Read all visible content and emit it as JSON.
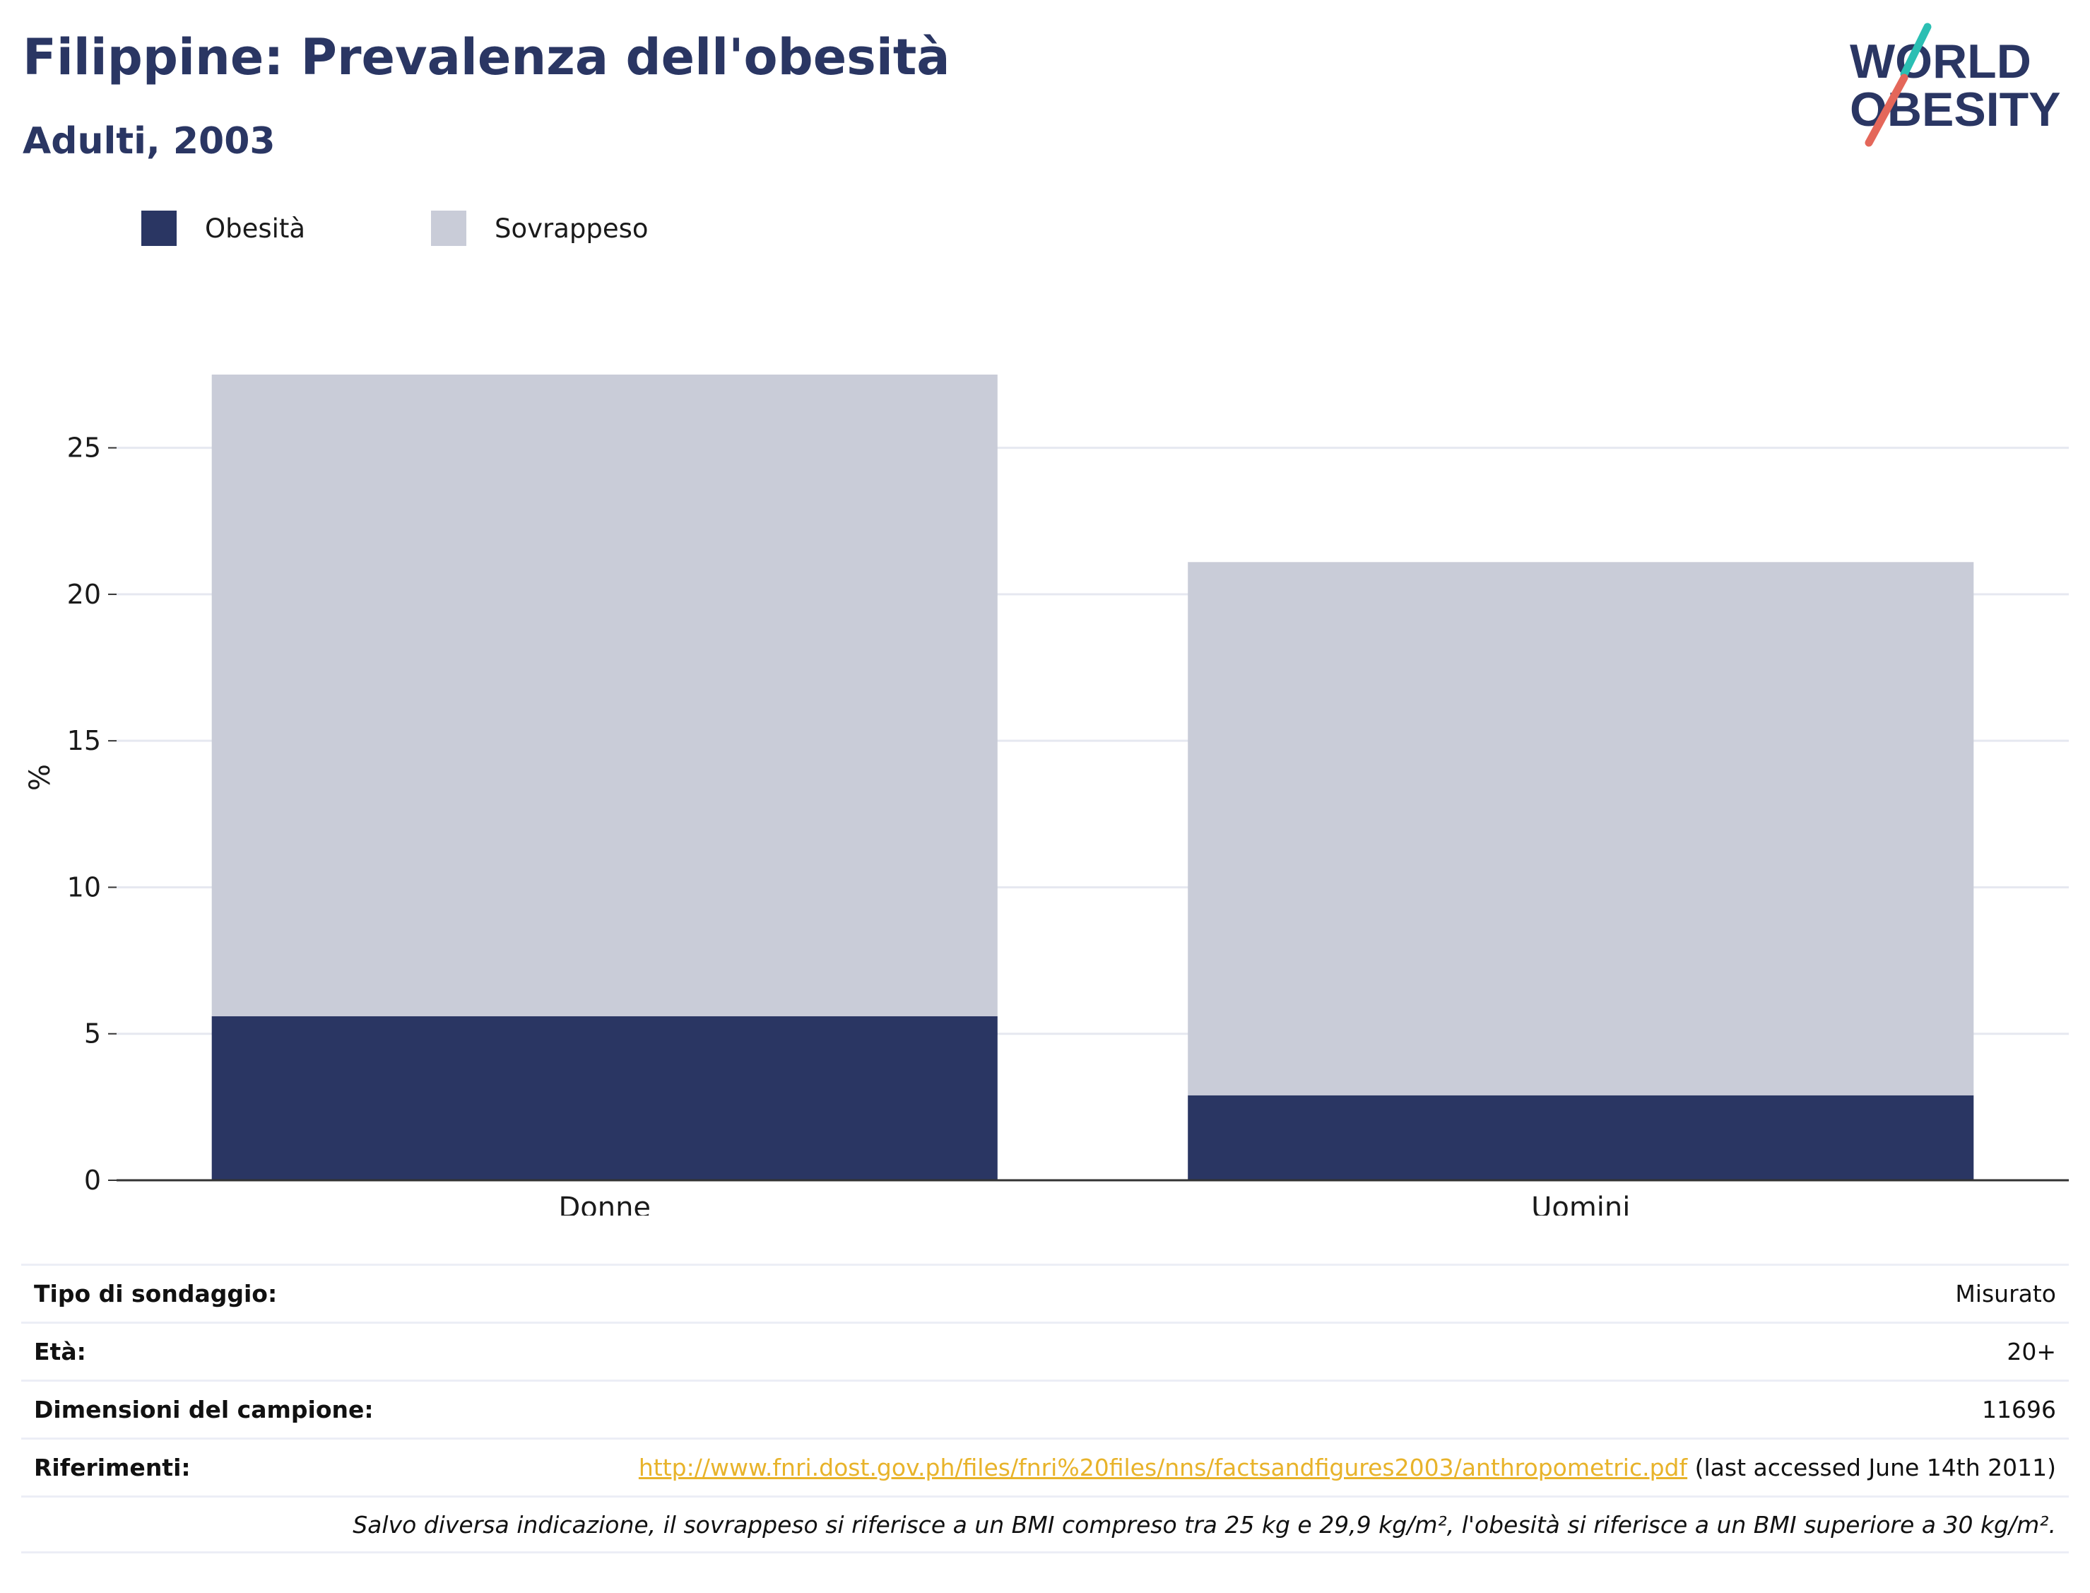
{
  "header": {
    "title": "Filippine: Prevalenza dell'obesità",
    "subtitle": "Adulti, 2003"
  },
  "logo": {
    "line1": "WORLD",
    "line2": "OBESITY",
    "accent_colors": [
      "#2bbfb3",
      "#e4675a"
    ]
  },
  "legend": [
    {
      "label": "Obesità",
      "color": "#2a3663"
    },
    {
      "label": "Sovrappeso",
      "color": "#c9ccd8"
    }
  ],
  "chart_data": {
    "type": "bar",
    "stacked": true,
    "categories": [
      "Donne",
      "Uomini"
    ],
    "series": [
      {
        "name": "Obesità",
        "color": "#2a3663",
        "values": [
          5.6,
          2.9
        ]
      },
      {
        "name": "Sovrappeso",
        "color": "#c9ccd8",
        "values": [
          21.9,
          18.2
        ]
      }
    ],
    "ylabel": "%",
    "ylim": [
      0,
      27.5
    ],
    "yticks": [
      0,
      5,
      10,
      15,
      20,
      25
    ],
    "grid": true
  },
  "info": {
    "survey_type": {
      "label": "Tipo di sondaggio:",
      "value": "Misurato"
    },
    "age": {
      "label": "Età:",
      "value": "20+"
    },
    "sample_size": {
      "label": "Dimensioni del campione:",
      "value": "11696"
    },
    "references": {
      "label": "Riferimenti:",
      "link": "http://www.fnri.dost.gov.ph/files/fnri%20files/nns/factsandfigures2003/anthropometric.pdf",
      "suffix": " (last accessed June 14th 2011)"
    },
    "note": "Salvo diversa indicazione, il sovrappeso si riferisce a un BMI compreso tra 25 kg e 29,9 kg/m², l'obesità si riferisce a un BMI superiore a 30 kg/m²."
  }
}
